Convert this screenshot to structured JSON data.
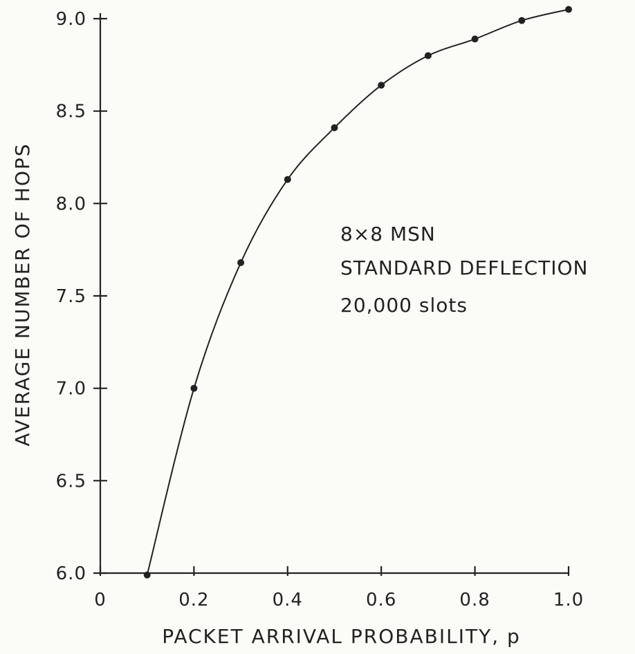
{
  "chart_data": {
    "type": "scatter",
    "title": "",
    "xlabel": "PACKET ARRIVAL PROBABILITY, p",
    "ylabel": "AVERAGE NUMBER OF HOPS",
    "xlim": [
      0,
      1.0
    ],
    "ylim": [
      6.0,
      9.0
    ],
    "grid": false,
    "x_ticks": [
      0,
      0.2,
      0.4,
      0.6,
      0.8,
      1.0
    ],
    "x_tick_labels": [
      "0",
      "0.2",
      "0.4",
      "0.6",
      "0.8",
      "1.0"
    ],
    "y_ticks": [
      6.0,
      6.5,
      7.0,
      7.5,
      8.0,
      8.5,
      9.0
    ],
    "y_tick_labels": [
      "6.0",
      "6.5",
      "7.0",
      "7.5",
      "8.0",
      "8.5",
      "9.0"
    ],
    "annotations": [
      "8×8 MSN",
      "STANDARD DEFLECTION",
      "20,000 slots"
    ],
    "series": [
      {
        "x": [
          0.1,
          0.2,
          0.3,
          0.4,
          0.5,
          0.6,
          0.7,
          0.8,
          0.9,
          1.0
        ],
        "y": [
          5.99,
          7.0,
          7.68,
          8.13,
          8.41,
          8.64,
          8.8,
          8.89,
          8.99,
          9.05
        ],
        "marker": "dot",
        "fitted_curve": true,
        "color": "#222222"
      }
    ]
  }
}
